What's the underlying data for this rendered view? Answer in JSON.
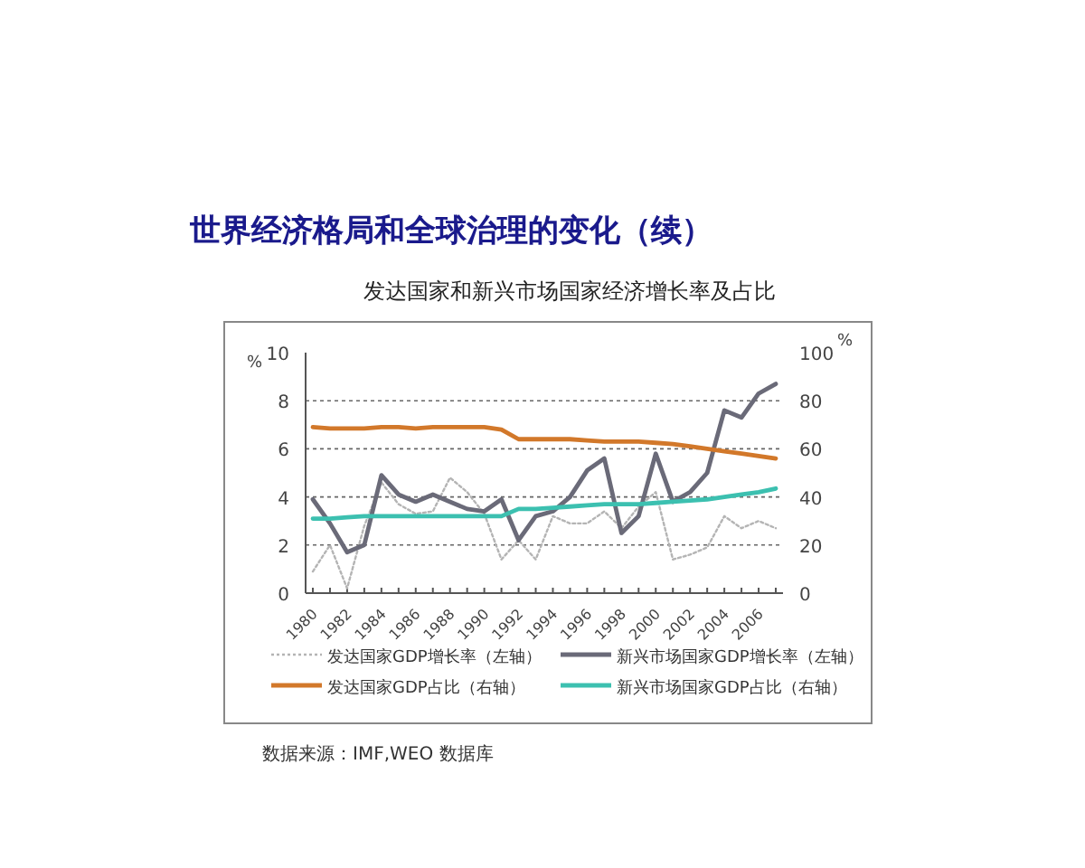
{
  "chart_data": {
    "type": "line",
    "title": "世界经济格局和全球治理的变化（续）",
    "subtitle": "发达国家和新兴市场国家经济增长率及占比",
    "ylabel": "%",
    "y2label": "%",
    "categories": [
      "1980",
      null,
      "1982",
      null,
      "1984",
      null,
      "1986",
      null,
      "1988",
      null,
      "1990",
      null,
      "1992",
      null,
      "1994",
      null,
      "1996",
      null,
      "1998",
      null,
      "2000",
      null,
      "2002",
      null,
      "2004",
      null,
      "2006",
      null
    ],
    "series": [
      {
        "name": "发达国家GDP增长率（左轴）",
        "color": "#b4b4b4",
        "line_style": "dotted",
        "values": [
          0.9,
          2.0,
          0.2,
          2.8,
          4.6,
          3.7,
          3.3,
          3.4,
          4.8,
          4.2,
          3.3,
          1.4,
          2.2,
          1.4,
          3.2,
          2.9,
          2.9,
          3.4,
          2.7,
          3.6,
          4.2,
          1.4,
          1.6,
          1.9,
          3.2,
          2.7,
          3.0,
          2.7
        ]
      },
      {
        "name": "新兴市场国家GDP增长率（左轴）",
        "color": "#6a6a78",
        "line_style": "solid",
        "values": [
          3.9,
          2.9,
          1.7,
          2.0,
          4.9,
          4.1,
          3.8,
          4.1,
          3.8,
          3.5,
          3.4,
          3.9,
          2.2,
          3.2,
          3.4,
          4.0,
          5.1,
          5.6,
          2.5,
          3.2,
          5.8,
          3.8,
          4.2,
          5.0,
          7.6,
          7.3,
          8.3,
          8.7
        ]
      },
      {
        "name": "发达国家GDP占比（右轴）",
        "color": "#d2782a",
        "line_style": "solid",
        "axis": "y2",
        "values": [
          69,
          68.5,
          68.5,
          68.5,
          69,
          69,
          68.5,
          69,
          69,
          69,
          69,
          68,
          64,
          64,
          64,
          64,
          63.5,
          63,
          63,
          63,
          62.5,
          62,
          61,
          60,
          59,
          58,
          57,
          56
        ]
      },
      {
        "name": "新兴市场国家GDP占比（右轴）",
        "color": "#3cc0b0",
        "line_style": "solid",
        "axis": "y2",
        "values": [
          31,
          31,
          31.5,
          32,
          32,
          32,
          32,
          32,
          32,
          32,
          32,
          32,
          35,
          35,
          35.5,
          36,
          36.5,
          37,
          37,
          37,
          37.5,
          38,
          38.5,
          39,
          40,
          41,
          42,
          43.5
        ]
      }
    ],
    "ylim": [
      0,
      10
    ],
    "yticks": [
      0,
      2,
      4,
      6,
      8,
      10
    ],
    "y2lim": [
      0,
      100
    ],
    "y2ticks": [
      0,
      20,
      40,
      60,
      80,
      100
    ],
    "grid": "y",
    "legend": "bottom",
    "annotations": [
      "数据来源：IMF,WEO 数据库"
    ]
  }
}
